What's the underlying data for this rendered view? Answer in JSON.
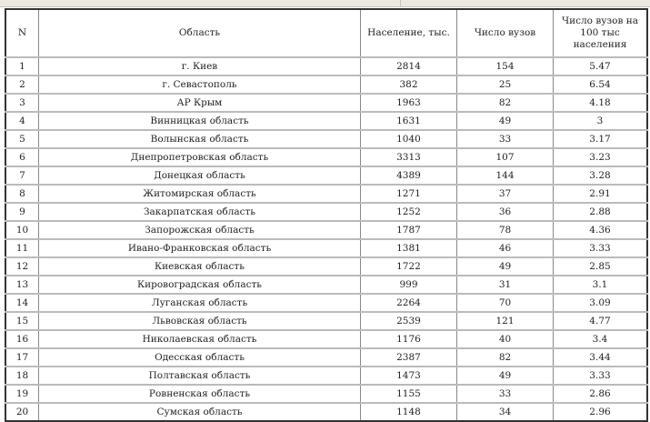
{
  "table": {
    "headers": [
      "N",
      "Область",
      "Население, тыс.",
      "Число вузов",
      "Число вузов на 100 тыс населения"
    ],
    "rows": [
      [
        "1",
        "г. Киев",
        "2814",
        "154",
        "5.47"
      ],
      [
        "2",
        "г. Севастополь",
        "382",
        "25",
        "6.54"
      ],
      [
        "3",
        "АР Крым",
        "1963",
        "82",
        "4.18"
      ],
      [
        "4",
        "Винницкая область",
        "1631",
        "49",
        "3"
      ],
      [
        "5",
        "Волынская область",
        "1040",
        "33",
        "3.17"
      ],
      [
        "6",
        "Днепропетровская область",
        "3313",
        "107",
        "3.23"
      ],
      [
        "7",
        "Донецкая область",
        "4389",
        "144",
        "3.28"
      ],
      [
        "8",
        "Житомирская область",
        "1271",
        "37",
        "2.91"
      ],
      [
        "9",
        "Закарпатская область",
        "1252",
        "36",
        "2.88"
      ],
      [
        "10",
        "Запорожская область",
        "1787",
        "78",
        "4.36"
      ],
      [
        "11",
        "Ивано-Франковская область",
        "1381",
        "46",
        "3.33"
      ],
      [
        "12",
        "Киевская область",
        "1722",
        "49",
        "2.85"
      ],
      [
        "13",
        "Кировоградская область",
        "999",
        "31",
        "3.1"
      ],
      [
        "14",
        "Луганская область",
        "2264",
        "70",
        "3.09"
      ],
      [
        "15",
        "Львовская область",
        "2539",
        "121",
        "4.77"
      ],
      [
        "16",
        "Николаевская область",
        "1176",
        "40",
        "3.4"
      ],
      [
        "17",
        "Одесская область",
        "2387",
        "82",
        "3.44"
      ],
      [
        "18",
        "Полтавская область",
        "1473",
        "49",
        "3.33"
      ],
      [
        "19",
        "Ровненская область",
        "1155",
        "33",
        "2.86"
      ],
      [
        "20",
        "Сумская область",
        "1148",
        "34",
        "2.96"
      ]
    ]
  }
}
